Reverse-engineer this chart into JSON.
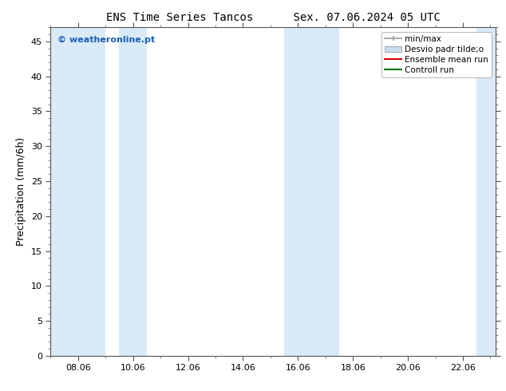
{
  "title": "ENS Time Series Tancos      Sex. 07.06.2024 05 UTC",
  "ylabel": "Precipitation (mm/6h)",
  "watermark": "© weatheronline.pt",
  "watermark_color": "#1a5fb4",
  "ylim": [
    0,
    47
  ],
  "yticks": [
    0,
    5,
    10,
    15,
    20,
    25,
    30,
    35,
    40,
    45
  ],
  "xtick_labels": [
    "08.06",
    "10.06",
    "12.06",
    "14.06",
    "16.06",
    "18.06",
    "20.06",
    "22.06"
  ],
  "shaded_regions": [
    {
      "xstart": 0.0,
      "xend": 2.0
    },
    {
      "xstart": 2.5,
      "xend": 3.5
    },
    {
      "xstart": 8.5,
      "xend": 10.5
    },
    {
      "xstart": 15.5,
      "xend": 16.2
    }
  ],
  "shaded_color": "#daeaf7",
  "background_color": "#ffffff",
  "legend_items": [
    {
      "label": "min/max"
    },
    {
      "label": "Desvio padr tilde;o"
    },
    {
      "label": "Ensemble mean run"
    },
    {
      "label": "Controll run"
    }
  ],
  "legend_colors": [
    "#999999",
    "#c8ddf0",
    "#dd0000",
    "#007700"
  ],
  "title_fontsize": 10,
  "ylabel_fontsize": 9,
  "tick_fontsize": 8,
  "watermark_fontsize": 8,
  "legend_fontsize": 7.5
}
